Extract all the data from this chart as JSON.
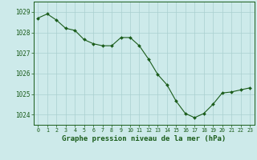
{
  "x": [
    0,
    1,
    2,
    3,
    4,
    5,
    6,
    7,
    8,
    9,
    10,
    11,
    12,
    13,
    14,
    15,
    16,
    17,
    18,
    19,
    20,
    21,
    22,
    23
  ],
  "y": [
    1028.7,
    1028.9,
    1028.6,
    1028.2,
    1028.1,
    1027.65,
    1027.45,
    1027.35,
    1027.35,
    1027.75,
    1027.75,
    1027.35,
    1026.7,
    1025.95,
    1025.45,
    1024.65,
    1024.05,
    1023.85,
    1024.05,
    1024.5,
    1025.05,
    1025.1,
    1025.2,
    1025.3
  ],
  "line_color": "#1a5c1a",
  "marker": "D",
  "marker_size": 2.0,
  "background_color": "#cdeaea",
  "grid_color": "#aacfcf",
  "ylabel_ticks": [
    1024,
    1025,
    1026,
    1027,
    1028,
    1029
  ],
  "xlabel_ticks": [
    0,
    1,
    2,
    3,
    4,
    5,
    6,
    7,
    8,
    9,
    10,
    11,
    12,
    13,
    14,
    15,
    16,
    17,
    18,
    19,
    20,
    21,
    22,
    23
  ],
  "xlabel": "Graphe pression niveau de la mer (hPa)",
  "ylim": [
    1023.5,
    1029.5
  ],
  "xlim": [
    -0.5,
    23.5
  ],
  "tick_color": "#1a5c1a",
  "label_color": "#1a5c1a",
  "xlabel_fontsize": 6.5,
  "ytick_fontsize": 5.5,
  "xtick_fontsize": 4.8,
  "linewidth": 0.8
}
